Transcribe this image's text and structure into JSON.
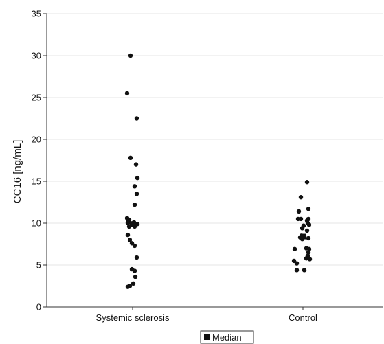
{
  "chart_data": {
    "type": "scatter",
    "ylabel": "CC16 [ng/mL]",
    "ylim": [
      0,
      35
    ],
    "yticks": [
      0,
      5,
      10,
      15,
      20,
      25,
      30,
      35
    ],
    "grid": true,
    "categories": [
      "Systemic sclerosis",
      "Control"
    ],
    "legend": {
      "label": "Median",
      "position": "bottom-right"
    },
    "colors": {
      "point": "#111111",
      "grid": "#e6e6e6",
      "axis": "#333333"
    },
    "series": [
      {
        "category": "Systemic sclerosis",
        "points": [
          {
            "x": -0.08,
            "y": 25.5
          },
          {
            "x": -0.03,
            "y": 30.0
          },
          {
            "x": 0.06,
            "y": 22.5
          },
          {
            "x": -0.03,
            "y": 17.8
          },
          {
            "x": 0.05,
            "y": 17.0
          },
          {
            "x": 0.07,
            "y": 15.4
          },
          {
            "x": 0.03,
            "y": 14.4
          },
          {
            "x": 0.06,
            "y": 13.5
          },
          {
            "x": 0.03,
            "y": 12.2
          },
          {
            "x": -0.08,
            "y": 10.6
          },
          {
            "x": -0.06,
            "y": 10.3
          },
          {
            "x": -0.05,
            "y": 10.4
          },
          {
            "x": -0.07,
            "y": 10.0
          },
          {
            "x": -0.05,
            "y": 9.6
          },
          {
            "x": -0.01,
            "y": 9.9
          },
          {
            "x": 0.02,
            "y": 10.1
          },
          {
            "x": 0.03,
            "y": 9.6
          },
          {
            "x": 0.07,
            "y": 9.9
          },
          {
            "x": -0.07,
            "y": 8.6
          },
          {
            "x": -0.04,
            "y": 8.0
          },
          {
            "x": -0.01,
            "y": 7.6
          },
          {
            "x": 0.03,
            "y": 7.3
          },
          {
            "x": 0.06,
            "y": 5.9
          },
          {
            "x": -0.01,
            "y": 4.5
          },
          {
            "x": 0.03,
            "y": 4.3
          },
          {
            "x": 0.04,
            "y": 3.6
          },
          {
            "x": 0.01,
            "y": 2.8
          },
          {
            "x": -0.07,
            "y": 2.4
          },
          {
            "x": -0.04,
            "y": 2.5
          }
        ],
        "median": 9.9
      },
      {
        "category": "Control",
        "points": [
          {
            "x": 0.06,
            "y": 14.9
          },
          {
            "x": -0.03,
            "y": 13.1
          },
          {
            "x": 0.08,
            "y": 11.7
          },
          {
            "x": -0.06,
            "y": 11.4
          },
          {
            "x": -0.07,
            "y": 10.5
          },
          {
            "x": -0.03,
            "y": 10.5
          },
          {
            "x": 0.06,
            "y": 10.3
          },
          {
            "x": 0.08,
            "y": 10.5
          },
          {
            "x": 0.07,
            "y": 10.0
          },
          {
            "x": 0.09,
            "y": 9.8
          },
          {
            "x": 0.01,
            "y": 9.7
          },
          {
            "x": -0.01,
            "y": 9.4
          },
          {
            "x": 0.06,
            "y": 9.1
          },
          {
            "x": -0.04,
            "y": 8.3
          },
          {
            "x": -0.02,
            "y": 8.5
          },
          {
            "x": 0.0,
            "y": 8.4
          },
          {
            "x": 0.02,
            "y": 8.4
          },
          {
            "x": 0.08,
            "y": 8.2
          },
          {
            "x": -0.01,
            "y": 8.1
          },
          {
            "x": -0.12,
            "y": 6.9
          },
          {
            "x": 0.05,
            "y": 7.0
          },
          {
            "x": 0.09,
            "y": 6.9
          },
          {
            "x": 0.08,
            "y": 6.5
          },
          {
            "x": 0.07,
            "y": 6.1
          },
          {
            "x": 0.05,
            "y": 5.8
          },
          {
            "x": 0.1,
            "y": 5.7
          },
          {
            "x": -0.13,
            "y": 5.5
          },
          {
            "x": -0.09,
            "y": 5.2
          },
          {
            "x": -0.09,
            "y": 4.4
          },
          {
            "x": 0.02,
            "y": 4.4
          }
        ],
        "median": 8.4
      }
    ]
  }
}
